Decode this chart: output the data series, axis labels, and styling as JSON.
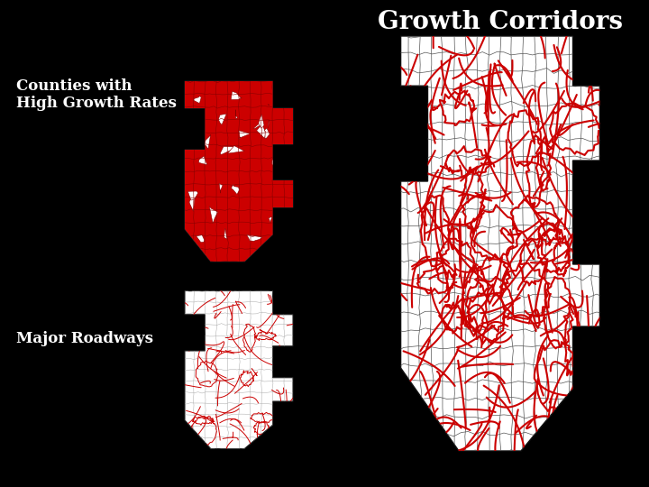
{
  "background_color": "#000000",
  "title_growth": "Growth Corridors",
  "label_counties": "Counties with\nHigh Growth Rates",
  "label_roads": "Major Roadways",
  "title_fontsize": 20,
  "label_fontsize": 12,
  "text_color": "#ffffff",
  "map_fill_white": "#ffffff",
  "map_fill_red": "#cc0000",
  "road_color": "#cc0000",
  "county_line_color": "#333333",
  "county_line_color_light": "#aaaaaa"
}
